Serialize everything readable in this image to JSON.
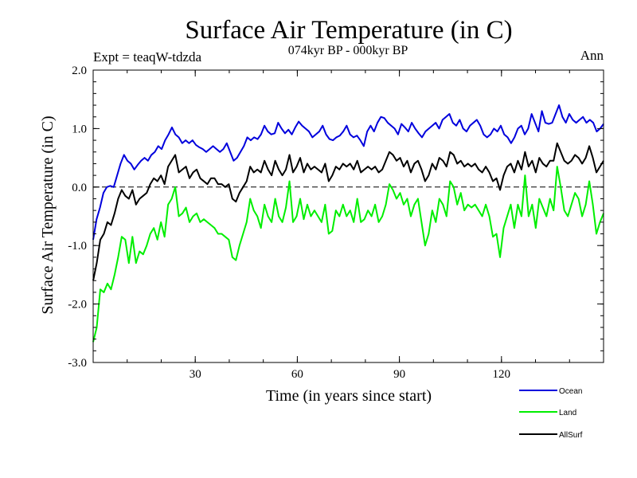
{
  "chart_data": {
    "type": "line",
    "title": "Surface Air Temperature (in C)",
    "subtitle": "074kyr BP - 000kyr BP",
    "left_annotation": "Expt = teaqW-tdzda",
    "right_annotation": "Ann",
    "xlabel": "Time (in years since start)",
    "ylabel": "Surface Air Temperature (in C)",
    "xlim": [
      0,
      150
    ],
    "ylim": [
      -3.0,
      2.0
    ],
    "x_ticks": [
      30,
      60,
      90,
      120
    ],
    "x_tick_labels": [
      "30",
      "60",
      "90",
      "120"
    ],
    "y_ticks": [
      -3.0,
      -2.0,
      -1.0,
      0.0,
      1.0,
      2.0
    ],
    "y_tick_labels": [
      "-3.0",
      "-2.0",
      "-1.0",
      "0.0",
      "1.0",
      "2.0"
    ],
    "reference_line": 0.0,
    "legend_position": "bottom-right, outside plot",
    "series": [
      {
        "name": "Ocean",
        "color": "#0000dd",
        "values": [
          -0.9,
          -0.55,
          -0.35,
          -0.1,
          0.0,
          0.02,
          0.0,
          0.2,
          0.4,
          0.55,
          0.45,
          0.4,
          0.3,
          0.38,
          0.45,
          0.5,
          0.45,
          0.55,
          0.6,
          0.7,
          0.65,
          0.8,
          0.9,
          1.02,
          0.9,
          0.85,
          0.75,
          0.8,
          0.75,
          0.8,
          0.72,
          0.68,
          0.65,
          0.6,
          0.65,
          0.7,
          0.65,
          0.6,
          0.65,
          0.75,
          0.6,
          0.45,
          0.5,
          0.6,
          0.7,
          0.85,
          0.8,
          0.85,
          0.82,
          0.9,
          1.05,
          0.95,
          0.9,
          0.92,
          1.1,
          1.0,
          0.92,
          0.98,
          0.9,
          1.02,
          1.12,
          1.05,
          1.0,
          0.95,
          0.85,
          0.9,
          0.95,
          1.05,
          0.9,
          0.82,
          0.8,
          0.85,
          0.88,
          0.95,
          1.05,
          0.9,
          0.85,
          0.88,
          0.8,
          0.7,
          0.95,
          1.05,
          0.95,
          1.1,
          1.2,
          1.18,
          1.1,
          1.05,
          1.0,
          0.9,
          1.08,
          1.02,
          0.95,
          1.1,
          1.0,
          0.92,
          0.85,
          0.95,
          1.0,
          1.05,
          1.1,
          1.0,
          1.15,
          1.2,
          1.25,
          1.1,
          1.05,
          1.15,
          1.0,
          0.95,
          1.05,
          1.1,
          1.15,
          1.05,
          0.9,
          0.85,
          0.9,
          1.0,
          0.95,
          1.05,
          0.9,
          0.85,
          0.75,
          0.85,
          1.0,
          1.05,
          0.9,
          1.0,
          1.25,
          1.1,
          0.95,
          1.3,
          1.1,
          1.08,
          1.1,
          1.25,
          1.4,
          1.2,
          1.1,
          1.25,
          1.15,
          1.1,
          1.15,
          1.2,
          1.1,
          1.15,
          1.1,
          0.95,
          1.0,
          1.08
        ]
      },
      {
        "name": "Land",
        "color": "#00ee00",
        "values": [
          -2.65,
          -2.4,
          -1.75,
          -1.8,
          -1.65,
          -1.75,
          -1.5,
          -1.2,
          -0.85,
          -0.9,
          -1.3,
          -0.85,
          -1.3,
          -1.1,
          -1.15,
          -1.0,
          -0.8,
          -0.7,
          -0.9,
          -0.6,
          -0.85,
          -0.3,
          -0.2,
          0.0,
          -0.5,
          -0.45,
          -0.35,
          -0.6,
          -0.5,
          -0.45,
          -0.6,
          -0.55,
          -0.6,
          -0.65,
          -0.7,
          -0.8,
          -0.8,
          -0.85,
          -0.9,
          -1.2,
          -1.25,
          -1.0,
          -0.8,
          -0.6,
          -0.2,
          -0.4,
          -0.5,
          -0.7,
          -0.3,
          -0.5,
          -0.6,
          -0.2,
          -0.5,
          -0.6,
          -0.35,
          0.1,
          -0.6,
          -0.5,
          -0.2,
          -0.55,
          -0.3,
          -0.5,
          -0.4,
          -0.5,
          -0.6,
          -0.3,
          -0.8,
          -0.75,
          -0.4,
          -0.5,
          -0.3,
          -0.5,
          -0.4,
          -0.6,
          -0.2,
          -0.6,
          -0.55,
          -0.4,
          -0.5,
          -0.3,
          -0.6,
          -0.5,
          -0.3,
          0.05,
          -0.05,
          -0.2,
          -0.1,
          -0.3,
          -0.2,
          -0.5,
          -0.3,
          -0.2,
          -0.6,
          -1.0,
          -0.8,
          -0.4,
          -0.6,
          -0.2,
          -0.3,
          -0.5,
          0.1,
          0.0,
          -0.3,
          -0.1,
          -0.4,
          -0.3,
          -0.35,
          -0.3,
          -0.4,
          -0.5,
          -0.3,
          -0.5,
          -0.85,
          -0.8,
          -1.2,
          -0.7,
          -0.5,
          -0.3,
          -0.7,
          -0.3,
          -0.5,
          0.2,
          -0.5,
          -0.3,
          -0.7,
          -0.2,
          -0.35,
          -0.5,
          -0.2,
          -0.4,
          0.35,
          0.0,
          -0.4,
          -0.5,
          -0.3,
          -0.1,
          -0.2,
          -0.5,
          -0.3,
          0.1,
          -0.3,
          -0.8,
          -0.6,
          -0.45
        ]
      },
      {
        "name": "AllSurf",
        "color": "#000000",
        "values": [
          -1.6,
          -1.3,
          -0.9,
          -0.8,
          -0.6,
          -0.65,
          -0.45,
          -0.2,
          -0.05,
          -0.15,
          -0.2,
          -0.05,
          -0.3,
          -0.2,
          -0.15,
          -0.1,
          0.05,
          0.15,
          0.1,
          0.2,
          0.05,
          0.35,
          0.45,
          0.55,
          0.25,
          0.3,
          0.35,
          0.15,
          0.25,
          0.3,
          0.15,
          0.1,
          0.05,
          0.15,
          0.15,
          0.05,
          0.05,
          0.0,
          0.05,
          -0.2,
          -0.25,
          -0.1,
          0.0,
          0.1,
          0.35,
          0.25,
          0.3,
          0.25,
          0.45,
          0.3,
          0.2,
          0.45,
          0.3,
          0.2,
          0.3,
          0.55,
          0.25,
          0.35,
          0.5,
          0.25,
          0.4,
          0.3,
          0.35,
          0.3,
          0.25,
          0.4,
          0.1,
          0.2,
          0.35,
          0.3,
          0.4,
          0.35,
          0.4,
          0.3,
          0.45,
          0.25,
          0.3,
          0.35,
          0.3,
          0.35,
          0.25,
          0.3,
          0.45,
          0.6,
          0.55,
          0.45,
          0.5,
          0.35,
          0.45,
          0.25,
          0.4,
          0.45,
          0.3,
          0.1,
          0.2,
          0.4,
          0.3,
          0.5,
          0.45,
          0.35,
          0.6,
          0.55,
          0.4,
          0.45,
          0.35,
          0.4,
          0.35,
          0.4,
          0.3,
          0.25,
          0.35,
          0.25,
          0.1,
          0.15,
          -0.05,
          0.2,
          0.35,
          0.4,
          0.25,
          0.45,
          0.3,
          0.6,
          0.35,
          0.45,
          0.25,
          0.5,
          0.4,
          0.35,
          0.45,
          0.45,
          0.75,
          0.6,
          0.45,
          0.4,
          0.45,
          0.55,
          0.5,
          0.4,
          0.5,
          0.7,
          0.5,
          0.25,
          0.35,
          0.45
        ]
      }
    ]
  }
}
